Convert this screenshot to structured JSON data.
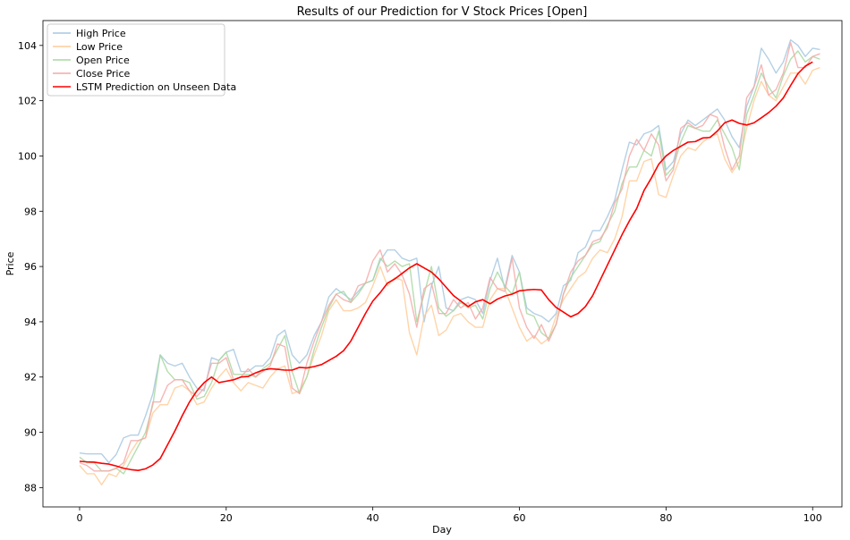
{
  "chart_data": {
    "type": "line",
    "title": "Results of our Prediction for V Stock Prices [Open]",
    "xlabel": "Day",
    "ylabel": "Price",
    "xlim": [
      -5,
      104
    ],
    "ylim": [
      87.3,
      104.9
    ],
    "xticks": [
      0,
      20,
      40,
      60,
      80,
      100
    ],
    "yticks": [
      88,
      90,
      92,
      94,
      96,
      98,
      100,
      102,
      104
    ],
    "legend_position": "upper-left",
    "series": [
      {
        "name": "High Price",
        "color": "#a6c8e0",
        "values": [
          89.25,
          89.22,
          89.22,
          89.22,
          88.9,
          89.2,
          89.8,
          89.9,
          89.9,
          90.6,
          91.4,
          92.8,
          92.5,
          92.4,
          92.5,
          92.0,
          91.6,
          91.5,
          92.7,
          92.6,
          92.9,
          93.0,
          92.2,
          92.2,
          92.4,
          92.4,
          92.7,
          93.5,
          93.7,
          92.8,
          92.5,
          92.8,
          93.5,
          94.0,
          94.9,
          95.2,
          95.0,
          94.8,
          95.1,
          95.4,
          95.5,
          96.2,
          96.6,
          96.6,
          96.3,
          96.2,
          96.3,
          94.0,
          95.3,
          96.0,
          94.5,
          94.4,
          94.8,
          94.9,
          94.8,
          94.3,
          95.5,
          96.3,
          95.2,
          96.4,
          95.8,
          94.5,
          94.3,
          94.2,
          94.0,
          94.3,
          95.3,
          95.5,
          96.5,
          96.7,
          97.3,
          97.3,
          97.8,
          98.4,
          99.5,
          100.5,
          100.4,
          100.8,
          100.9,
          101.1,
          99.5,
          99.8,
          100.8,
          101.3,
          101.1,
          101.3,
          101.5,
          101.7,
          101.3,
          100.7,
          100.3,
          101.8,
          102.5,
          103.9,
          103.5,
          103.0,
          103.4,
          104.2,
          104.0,
          103.6,
          103.9,
          103.85
        ]
      },
      {
        "name": "Low Price",
        "color": "#ffcc99",
        "values": [
          88.8,
          88.5,
          88.5,
          88.1,
          88.5,
          88.4,
          88.8,
          89.3,
          89.7,
          89.8,
          90.7,
          91.0,
          91.0,
          91.6,
          91.7,
          91.5,
          91.0,
          91.1,
          91.6,
          92.0,
          92.3,
          91.8,
          91.5,
          91.8,
          91.7,
          91.6,
          92.0,
          92.3,
          92.4,
          91.4,
          91.5,
          92.0,
          92.8,
          93.5,
          94.4,
          94.8,
          94.4,
          94.4,
          94.5,
          94.7,
          95.3,
          96.0,
          95.3,
          95.6,
          95.5,
          93.6,
          92.8,
          94.2,
          94.6,
          93.5,
          93.7,
          94.2,
          94.3,
          94.0,
          93.8,
          93.8,
          94.8,
          95.2,
          95.2,
          94.5,
          93.8,
          93.3,
          93.5,
          93.2,
          93.4,
          94.2,
          94.8,
          95.2,
          95.6,
          95.8,
          96.3,
          96.6,
          96.5,
          97.0,
          97.8,
          99.1,
          99.1,
          99.8,
          99.9,
          98.6,
          98.5,
          99.3,
          100.0,
          100.3,
          100.2,
          100.5,
          100.7,
          100.8,
          99.9,
          99.4,
          99.8,
          101.0,
          102.0,
          102.7,
          102.2,
          102.0,
          102.5,
          103.0,
          103.0,
          102.6,
          103.1,
          103.2
        ]
      },
      {
        "name": "Open Price",
        "color": "#a8d8a0",
        "values": [
          89.1,
          88.9,
          88.9,
          88.6,
          88.6,
          88.7,
          88.5,
          89.0,
          89.5,
          90.0,
          91.0,
          92.8,
          92.2,
          91.9,
          91.9,
          91.8,
          91.2,
          91.3,
          91.8,
          92.6,
          92.9,
          92.1,
          92.1,
          92.1,
          92.0,
          92.3,
          92.5,
          93.0,
          93.5,
          92.2,
          91.4,
          92.0,
          93.0,
          93.8,
          94.5,
          95.0,
          95.1,
          94.7,
          95.0,
          95.4,
          95.5,
          96.3,
          96.0,
          96.2,
          96.0,
          96.1,
          94.0,
          95.0,
          96.0,
          94.5,
          94.2,
          94.4,
          94.7,
          94.5,
          94.6,
          94.1,
          95.2,
          95.8,
          95.3,
          95.0,
          95.8,
          94.3,
          94.2,
          93.6,
          93.4,
          93.9,
          95.0,
          95.6,
          96.0,
          96.4,
          96.8,
          96.9,
          97.5,
          98.0,
          99.0,
          99.6,
          99.6,
          100.2,
          100.0,
          100.9,
          99.3,
          99.6,
          100.5,
          101.1,
          101.0,
          100.9,
          100.9,
          101.3,
          100.8,
          100.3,
          99.5,
          101.5,
          102.2,
          103.0,
          102.5,
          102.1,
          102.9,
          103.5,
          103.8,
          103.4,
          103.6,
          103.5
        ]
      },
      {
        "name": "Close Price",
        "color": "#f4a9a8",
        "values": [
          88.9,
          88.8,
          88.6,
          88.6,
          88.6,
          88.7,
          88.9,
          89.7,
          89.7,
          89.8,
          91.1,
          91.1,
          91.7,
          91.9,
          91.9,
          91.5,
          91.3,
          91.6,
          92.5,
          92.5,
          92.7,
          91.9,
          92.0,
          92.3,
          92.0,
          92.2,
          92.4,
          93.2,
          93.1,
          91.6,
          91.4,
          92.5,
          93.3,
          94.0,
          94.6,
          95.0,
          94.8,
          94.7,
          95.3,
          95.4,
          96.2,
          96.6,
          95.8,
          96.1,
          95.7,
          95.0,
          93.8,
          95.2,
          95.4,
          94.3,
          94.3,
          94.8,
          94.5,
          94.7,
          94.1,
          94.5,
          95.6,
          95.2,
          95.1,
          96.3,
          94.5,
          93.8,
          93.4,
          93.9,
          93.3,
          93.9,
          95.0,
          95.8,
          96.2,
          96.4,
          96.9,
          97.0,
          97.4,
          98.3,
          98.8,
          100.0,
          100.6,
          100.2,
          100.8,
          100.4,
          99.1,
          99.5,
          101.0,
          101.2,
          101.0,
          101.1,
          101.5,
          101.4,
          100.3,
          99.5,
          100.0,
          102.1,
          102.5,
          103.3,
          102.2,
          102.4,
          103.0,
          104.1,
          103.2,
          103.2,
          103.6,
          103.7
        ]
      },
      {
        "name": "LSTM Prediction on Unseen Data",
        "color": "#ff0000",
        "values": [
          88.95,
          88.93,
          88.92,
          88.88,
          88.85,
          88.78,
          88.7,
          88.65,
          88.62,
          88.68,
          88.82,
          89.05,
          89.55,
          90.05,
          90.6,
          91.1,
          91.5,
          91.8,
          92.0,
          91.8,
          91.85,
          91.9,
          92.0,
          92.02,
          92.15,
          92.25,
          92.3,
          92.28,
          92.25,
          92.25,
          92.35,
          92.33,
          92.38,
          92.45,
          92.6,
          92.75,
          92.95,
          93.3,
          93.8,
          94.3,
          94.75,
          95.05,
          95.4,
          95.55,
          95.75,
          95.95,
          96.1,
          95.95,
          95.8,
          95.55,
          95.25,
          94.95,
          94.75,
          94.55,
          94.72,
          94.8,
          94.65,
          94.82,
          94.93,
          95.0,
          95.12,
          95.15,
          95.17,
          95.15,
          94.8,
          94.52,
          94.35,
          94.18,
          94.3,
          94.55,
          94.95,
          95.5,
          96.05,
          96.6,
          97.15,
          97.65,
          98.1,
          98.75,
          99.2,
          99.7,
          100.0,
          100.2,
          100.35,
          100.5,
          100.52,
          100.65,
          100.67,
          100.9,
          101.2,
          101.3,
          101.18,
          101.12,
          101.2,
          101.38,
          101.57,
          101.8,
          102.1,
          102.55,
          102.98,
          103.25,
          103.4
        ]
      }
    ]
  }
}
